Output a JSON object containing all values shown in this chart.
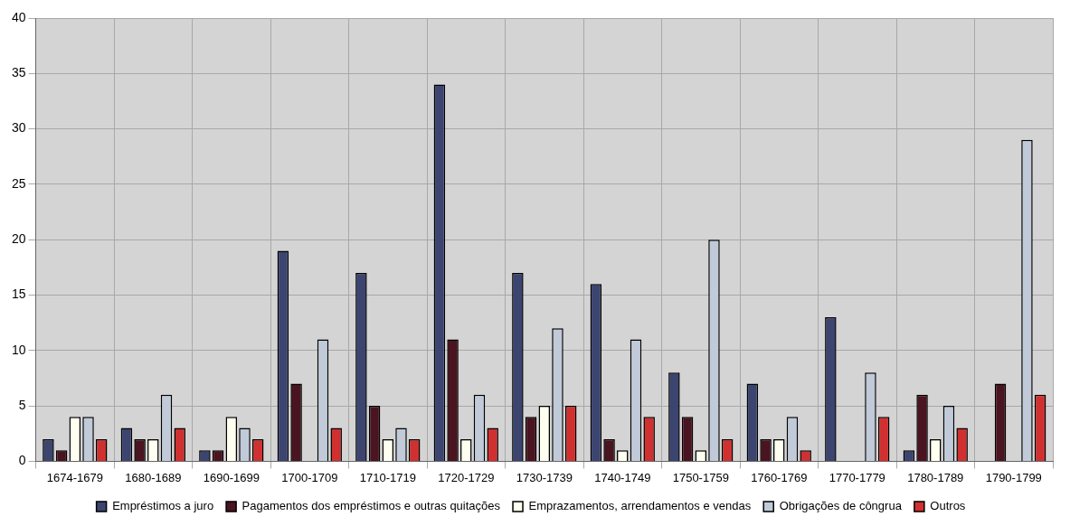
{
  "chart_data": {
    "type": "bar",
    "categories": [
      "1674-1679",
      "1680-1689",
      "1690-1699",
      "1700-1709",
      "1710-1719",
      "1720-1729",
      "1730-1739",
      "1740-1749",
      "1750-1759",
      "1760-1769",
      "1770-1779",
      "1780-1789",
      "1790-1799"
    ],
    "series": [
      {
        "name": "Empréstimos a juro",
        "color": "#3c4470",
        "values": [
          2,
          3,
          1,
          19,
          17,
          34,
          17,
          16,
          8,
          7,
          13,
          1,
          0
        ]
      },
      {
        "name": "Pagamentos dos empréstimos e outras quitações",
        "color": "#4a1420",
        "values": [
          1,
          2,
          1,
          7,
          5,
          11,
          4,
          2,
          4,
          2,
          0,
          6,
          7
        ]
      },
      {
        "name": "Emprazamentos, arrendamentos e vendas",
        "color": "#fffff0",
        "values": [
          4,
          2,
          4,
          0,
          2,
          2,
          5,
          1,
          1,
          2,
          0,
          2,
          0
        ]
      },
      {
        "name": "Obrigações de côngrua",
        "color": "#c0cad8",
        "values": [
          4,
          6,
          3,
          11,
          3,
          6,
          12,
          11,
          20,
          4,
          8,
          5,
          29
        ]
      },
      {
        "name": "Outros",
        "color": "#d03030",
        "values": [
          2,
          3,
          2,
          3,
          2,
          3,
          5,
          4,
          2,
          1,
          4,
          3,
          6
        ]
      }
    ],
    "ylim": [
      0,
      40
    ],
    "yticks": [
      0,
      5,
      10,
      15,
      20,
      25,
      30,
      35,
      40
    ],
    "grid": true,
    "legend": "bottom"
  }
}
